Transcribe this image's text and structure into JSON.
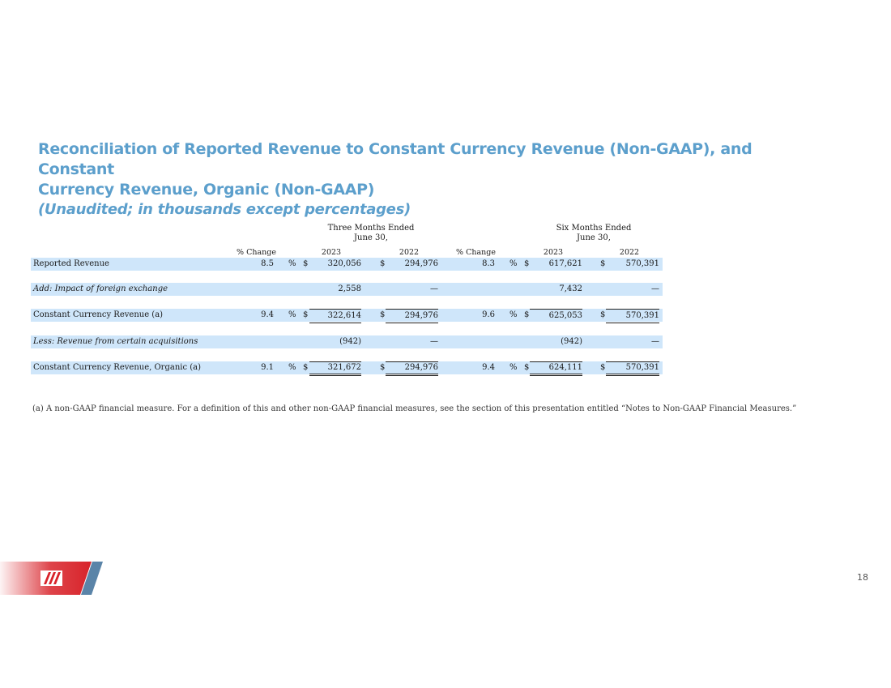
{
  "title": {
    "line1": "Reconciliation of Reported Revenue to Constant Currency Revenue (Non-GAAP), and Constant",
    "line2": "Currency Revenue, Organic (Non-GAAP)",
    "subtitle": "(Unaudited; in thousands except percentages)"
  },
  "header": {
    "three_months_title": "Three Months Ended",
    "three_months_sub": "June 30,",
    "six_months_title": "Six Months Ended",
    "six_months_sub": "June 30,",
    "col_pct_change": "% Change",
    "col_2023": "2023",
    "col_2022": "2022"
  },
  "rows": [
    {
      "label": "Reported Revenue",
      "q_pct": "8.5",
      "q_2023": "320,056",
      "q_2022": "294,976",
      "h_pct": "8.3",
      "h_2023": "617,621",
      "h_2022": "570,391"
    },
    {
      "label": "Add: Impact of foreign exchange",
      "q_2023": "2,558",
      "q_2022": "—",
      "h_2023": "7,432",
      "h_2022": "—"
    },
    {
      "label": "Constant Currency Revenue (a)",
      "q_pct": "9.4",
      "q_2023": "322,614",
      "q_2022": "294,976",
      "h_pct": "9.6",
      "h_2023": "625,053",
      "h_2022": "570,391"
    },
    {
      "label": "Less: Revenue from certain acquisitions",
      "q_2023": "(942)",
      "q_2022": "—",
      "h_2023": "(942)",
      "h_2022": "—"
    },
    {
      "label": "Constant Currency Revenue, Organic (a)",
      "q_pct": "9.1",
      "q_2023": "321,672",
      "q_2022": "294,976",
      "h_pct": "9.4",
      "h_2023": "624,111",
      "h_2022": "570,391"
    }
  ],
  "symbols": {
    "percent": "%",
    "dollar": "$"
  },
  "footnote": "(a) A non-GAAP financial measure. For a definition of this and other non-GAAP financial measures, see the section of this presentation entitled “Notes to Non-GAAP Financial Measures.”",
  "page_number": "18",
  "colors": {
    "title": "#5c9fcc",
    "row_fill": "#cfe6fa",
    "logo_red": "#d8232a",
    "logo_stripe": "#5a84a8"
  }
}
